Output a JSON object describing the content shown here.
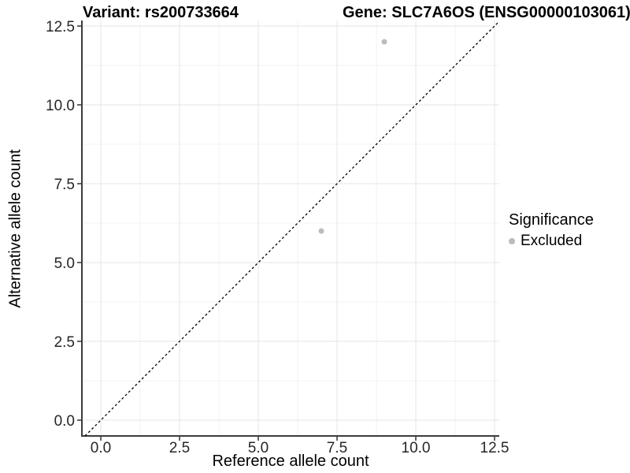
{
  "chart_data": {
    "type": "scatter",
    "title_left": "Variant: rs200733664",
    "title_right": "Gene: SLC7A6OS (ENSG00000103061)",
    "xlabel": "Reference allele count",
    "ylabel": "Alternative allele count",
    "xlim": [
      -0.6,
      12.65
    ],
    "ylim": [
      -0.5,
      12.675
    ],
    "x_ticks": [
      0.0,
      2.5,
      5.0,
      7.5,
      10.0,
      12.5
    ],
    "y_ticks": [
      0.0,
      2.5,
      5.0,
      7.5,
      10.0,
      12.5
    ],
    "x_tick_labels": [
      "0.0",
      "2.5",
      "5.0",
      "7.5",
      "10.0",
      "12.5"
    ],
    "y_tick_labels": [
      "0.0",
      "2.5",
      "5.0",
      "7.5",
      "10.0",
      "12.5"
    ],
    "grid": {
      "major": true,
      "minor": true,
      "legend_position": "right"
    },
    "series": [
      {
        "name": "Excluded",
        "color": "#bcbcbc",
        "points": [
          {
            "x": 9,
            "y": 12
          },
          {
            "x": 7,
            "y": 6
          }
        ]
      }
    ],
    "reference_line": {
      "type": "identity",
      "slope": 1,
      "intercept": 0,
      "style": "dashed",
      "color": "#000000"
    },
    "legend": {
      "title": "Significance",
      "items": [
        {
          "label": "Excluded",
          "color": "#bcbcbc"
        }
      ]
    },
    "colors": {
      "background": "#ffffff",
      "grid_major": "#e4e4e4",
      "grid_minor": "#f3f3f3",
      "axis_line": "#3c3c3c",
      "tick_mark": "#333333",
      "tick_text": "#262626",
      "point": "#bcbcbc"
    }
  }
}
